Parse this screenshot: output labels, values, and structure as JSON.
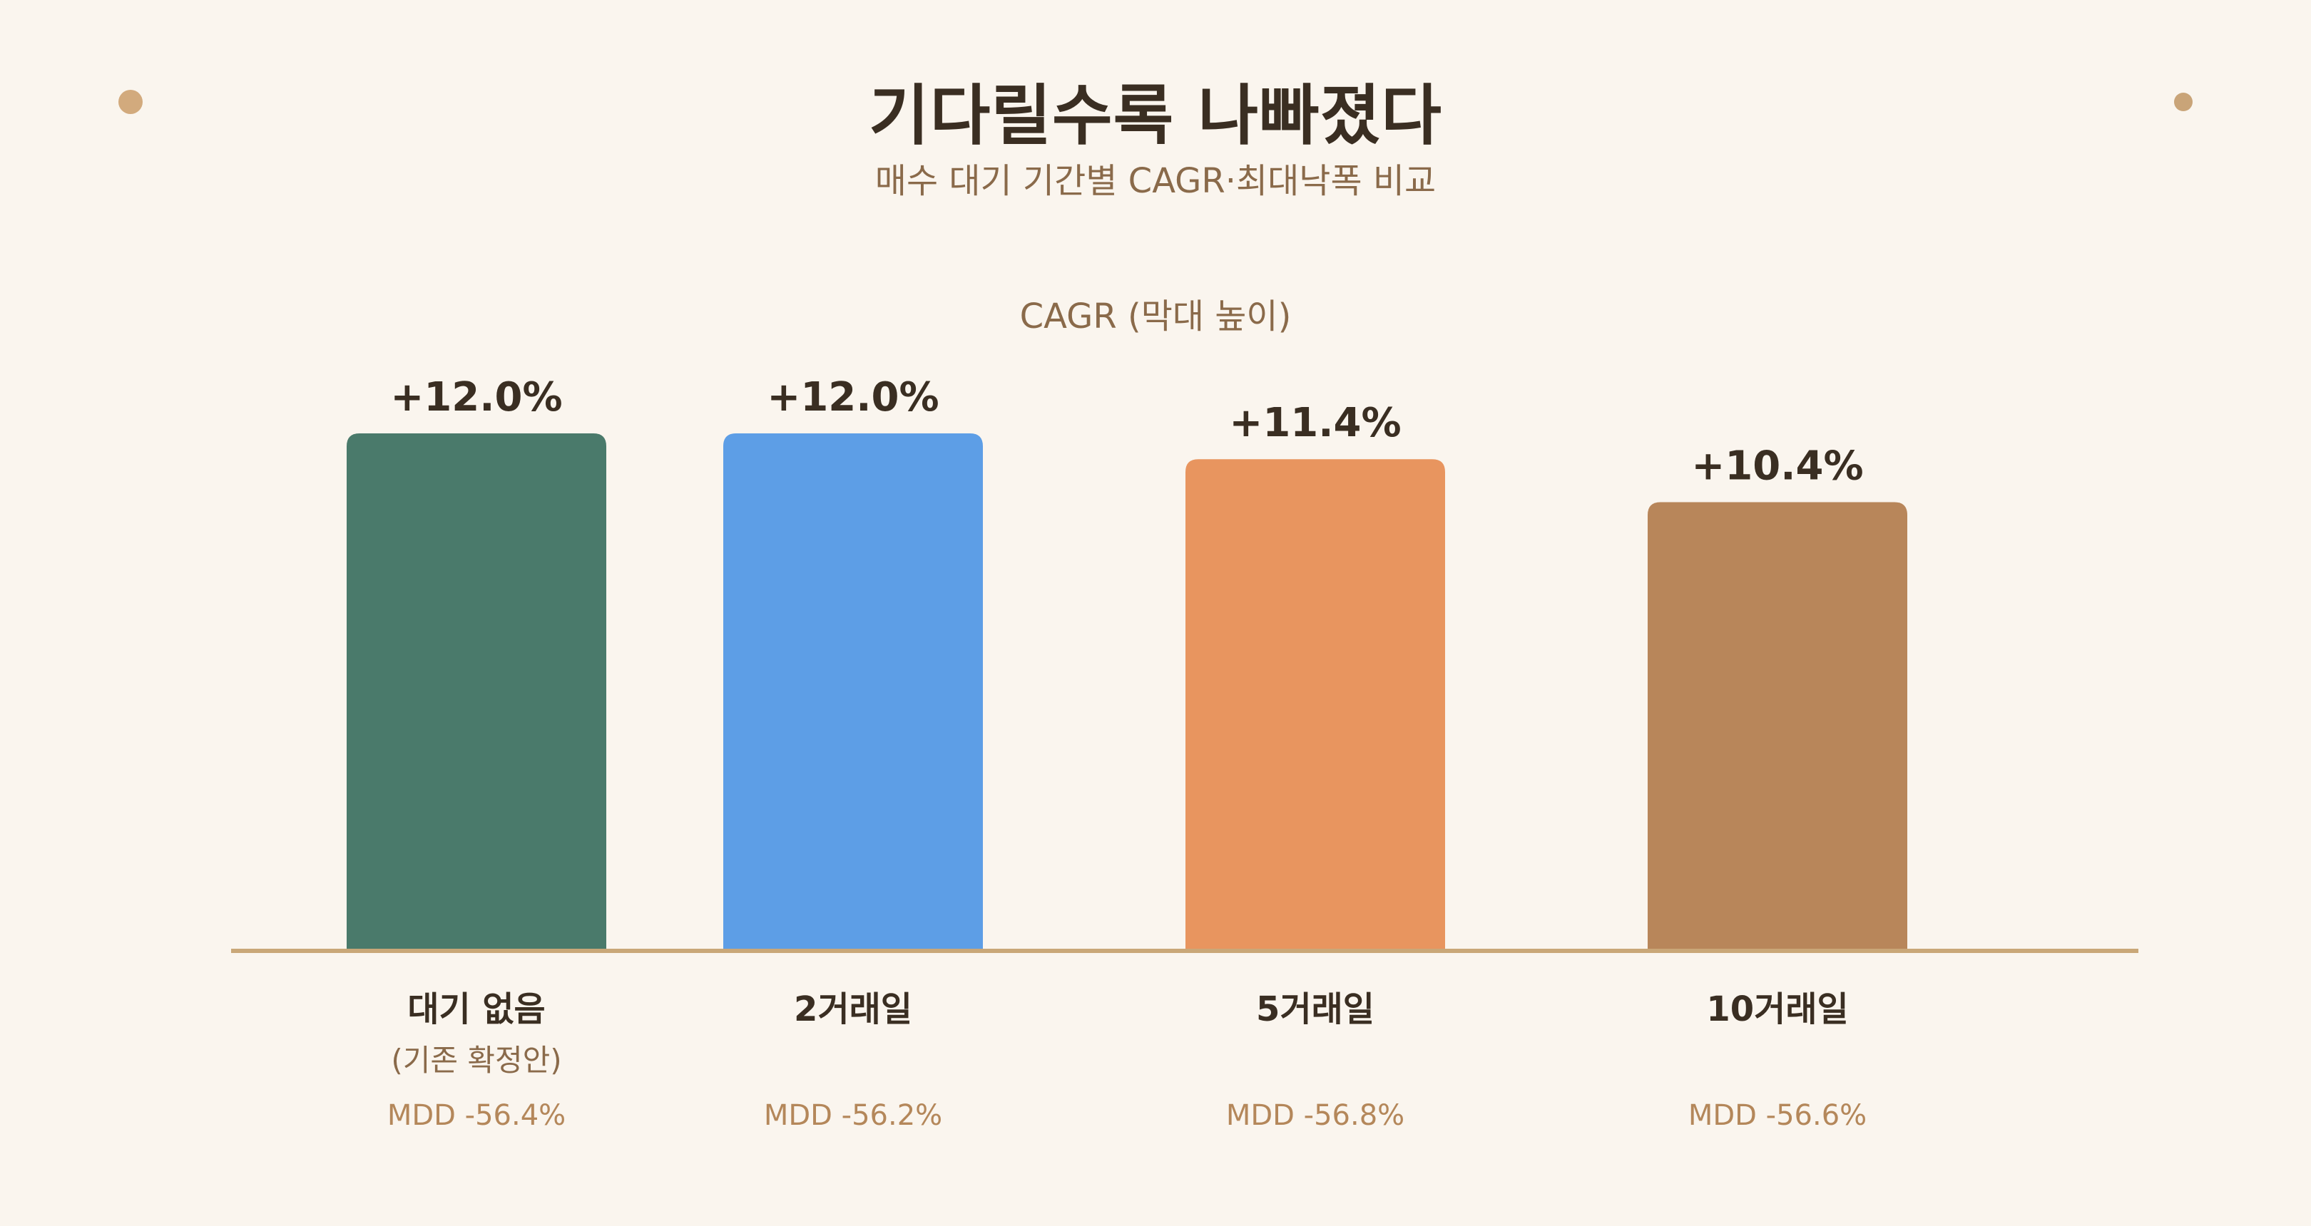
{
  "header": {
    "title": "기다릴수록 나빠졌다",
    "subtitle": "매수 대기 기간별 CAGR·최대낙폭 비교"
  },
  "chart_data": {
    "type": "bar",
    "title": "기다릴수록 나빠졌다",
    "subtitle": "매수 대기 기간별 CAGR·최대낙폭 비교",
    "ylabel": "CAGR (막대 높이)",
    "xlabel": "",
    "categories": [
      "대기 없음",
      "2거래일",
      "5거래일",
      "10거래일"
    ],
    "category_sublabels": [
      "(기존 확정안)",
      "",
      "",
      ""
    ],
    "values": [
      12.0,
      12.0,
      11.4,
      10.4
    ],
    "value_labels": [
      "+12.0%",
      "+12.0%",
      "+11.4%",
      "+10.4%"
    ],
    "mdd_labels": [
      "MDD -56.4%",
      "MDD -56.2%",
      "MDD -56.8%",
      "MDD -56.6%"
    ],
    "mdd_values": [
      -56.4,
      -56.2,
      -56.8,
      -56.6
    ],
    "ylim": [
      0,
      12.0
    ],
    "grid": false,
    "legend": "none",
    "colors": [
      "#4a7a6b",
      "#5d9ee6",
      "#e8955f",
      "#b8865a"
    ],
    "baseline_color": "#c9a778"
  }
}
